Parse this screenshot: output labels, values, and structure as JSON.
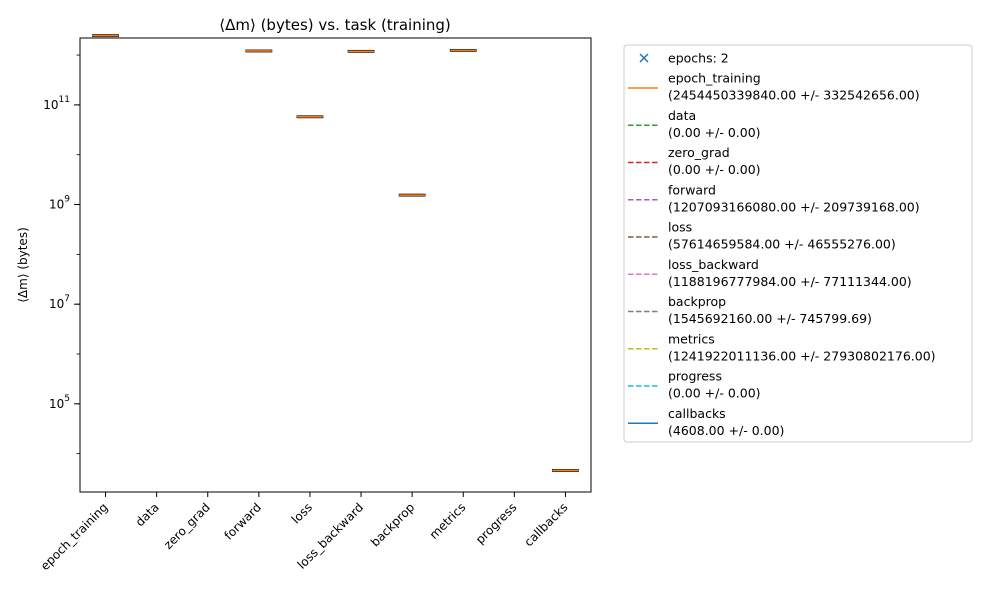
{
  "chart_data": {
    "type": "box",
    "title": "⟨Δm⟩ (bytes) vs. task (training)",
    "xlabel": "",
    "ylabel": "⟨Δm⟩ (bytes)",
    "yscale": "log",
    "ylim": [
      1700,
      2200000000000
    ],
    "yticks": [
      {
        "value": 100000,
        "base": "10",
        "exp": "5"
      },
      {
        "value": 10000000,
        "base": "10",
        "exp": "7"
      },
      {
        "value": 1000000000,
        "base": "10",
        "exp": "9"
      },
      {
        "value": 100000000000,
        "base": "10",
        "exp": "11"
      }
    ],
    "categories": [
      "epoch_training",
      "data",
      "zero_grad",
      "forward",
      "loss",
      "loss_backward",
      "backprop",
      "metrics",
      "progress",
      "callbacks"
    ],
    "values": [
      2454450339840.0,
      0.0,
      0.0,
      1207093166080.0,
      57614659584.0,
      1188196777984.0,
      1545692160.0,
      1241922011136.0,
      0.0,
      4608.0
    ],
    "errors": [
      332542656.0,
      0.0,
      0.0,
      209739168.0,
      46555276.0,
      77111344.0,
      745799.69,
      27930802176.0,
      0.0,
      0.0
    ],
    "box_color": "#ff7f0e",
    "grid": false,
    "legend_position": "outside-right",
    "legend": [
      {
        "kind": "marker",
        "color": "#1f77b4",
        "name": "epochs: 2",
        "stats": ""
      },
      {
        "kind": "solid",
        "color": "#ff7f0e",
        "name": "epoch_training",
        "stats": "(2454450339840.00 +/- 332542656.00)"
      },
      {
        "kind": "dashed",
        "color": "#2ca02c",
        "name": "data",
        "stats": "(0.00 +/- 0.00)"
      },
      {
        "kind": "dashed",
        "color": "#d62728",
        "name": "zero_grad",
        "stats": "(0.00 +/- 0.00)"
      },
      {
        "kind": "dashed",
        "color": "#9467bd",
        "name": "forward",
        "stats": "(1207093166080.00 +/- 209739168.00)"
      },
      {
        "kind": "dashed",
        "color": "#8c564b",
        "name": "loss",
        "stats": "(57614659584.00 +/- 46555276.00)"
      },
      {
        "kind": "dashed",
        "color": "#e377c2",
        "name": "loss_backward",
        "stats": "(1188196777984.00 +/- 77111344.00)"
      },
      {
        "kind": "dashed",
        "color": "#7f7f7f",
        "name": "backprop",
        "stats": "(1545692160.00 +/- 745799.69)"
      },
      {
        "kind": "dashed",
        "color": "#bcbd22",
        "name": "metrics",
        "stats": "(1241922011136.00 +/- 27930802176.00)"
      },
      {
        "kind": "dashed",
        "color": "#17becf",
        "name": "progress",
        "stats": "(0.00 +/- 0.00)"
      },
      {
        "kind": "solid",
        "color": "#1f77b4",
        "name": "callbacks",
        "stats": "(4608.00 +/- 0.00)"
      }
    ]
  }
}
